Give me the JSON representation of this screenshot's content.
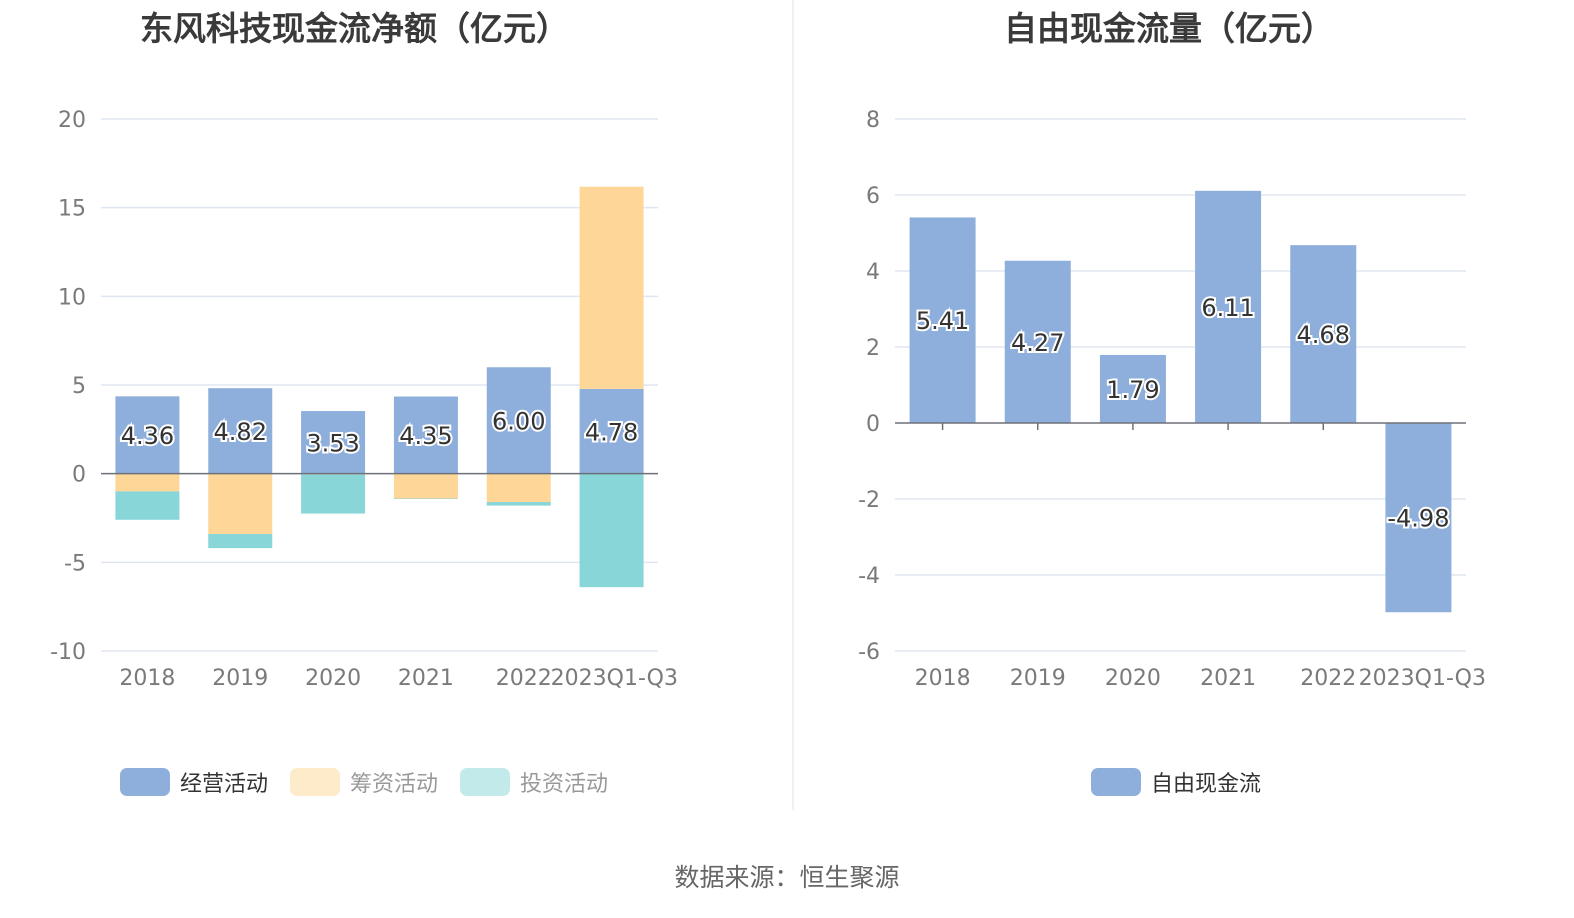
{
  "chart_data": [
    {
      "type": "bar",
      "stacked": true,
      "title": "东风科技现金流净额（亿元）",
      "xlabel": "",
      "ylabel": "",
      "ylim": [
        -10,
        20
      ],
      "yticks": [
        "20",
        "15",
        "10",
        "5",
        "0",
        "-5",
        "-10"
      ],
      "ytick_values": [
        20,
        15,
        10,
        5,
        0,
        -5,
        -10
      ],
      "grid": true,
      "legend_position": "bottom",
      "categories": [
        "2018",
        "2019",
        "2020",
        "2021",
        "2022",
        "2023Q1-Q3"
      ],
      "series": [
        {
          "name": "经营活动",
          "color": "#8eaedb",
          "values": [
            4.36,
            4.82,
            3.53,
            4.35,
            6.0,
            4.78
          ],
          "labels": [
            "4.36",
            "4.82",
            "3.53",
            "4.35",
            "6.00",
            "4.78"
          ],
          "active": true
        },
        {
          "name": "筹资活动",
          "color": "#fed798",
          "legend_color": "#feebc9",
          "values": [
            -1.0,
            -3.4,
            -0.05,
            -1.4,
            -1.6,
            11.4
          ],
          "active": false
        },
        {
          "name": "投资活动",
          "color": "#88d6d8",
          "legend_color": "#c3eaeb",
          "values": [
            -1.6,
            -0.8,
            -2.2,
            -0.02,
            -0.2,
            -6.4
          ],
          "active": false
        }
      ]
    },
    {
      "type": "bar",
      "title": "自由现金流量（亿元）",
      "xlabel": "",
      "ylabel": "",
      "ylim": [
        -6,
        8
      ],
      "yticks": [
        "8",
        "6",
        "4",
        "2",
        "0",
        "-2",
        "-4",
        "-6"
      ],
      "ytick_values": [
        8,
        6,
        4,
        2,
        0,
        -2,
        -4,
        -6
      ],
      "grid": true,
      "legend_position": "bottom",
      "categories": [
        "2018",
        "2019",
        "2020",
        "2021",
        "2022",
        "2023Q1-Q3"
      ],
      "series": [
        {
          "name": "自由现金流",
          "color": "#8eaedb",
          "values": [
            5.41,
            4.27,
            1.79,
            6.11,
            4.68,
            -4.98
          ],
          "labels": [
            "5.41",
            "4.27",
            "1.79",
            "6.11",
            "4.68",
            "-4.98"
          ],
          "active": true
        }
      ]
    }
  ],
  "source": "数据来源：恒生聚源"
}
